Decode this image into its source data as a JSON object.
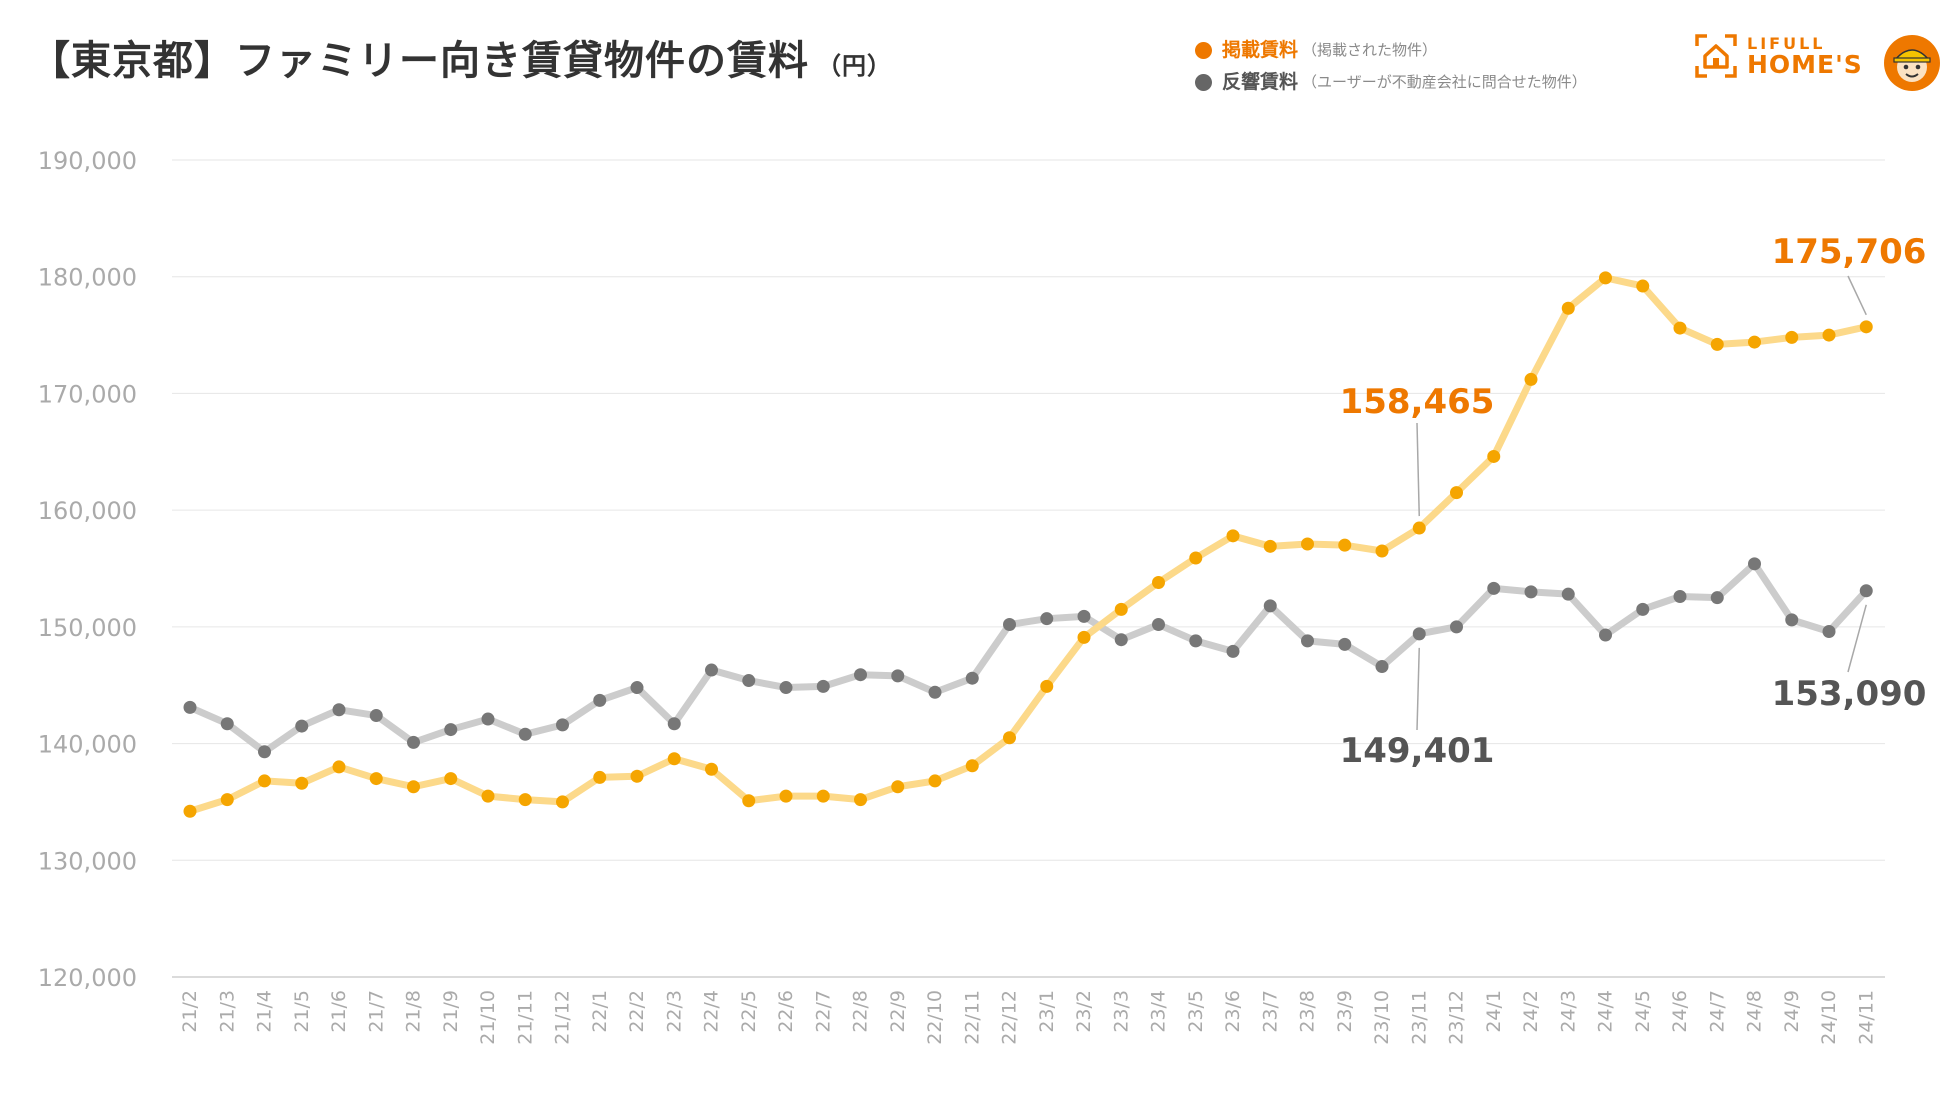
{
  "title": "【東京都】ファミリー向き賃貸物件の賃料",
  "title_unit": "（円）",
  "legend": [
    {
      "label": "掲載賃料",
      "note": "（掲載された物件）",
      "color": "#ee7800",
      "dot_color": "#ee7800"
    },
    {
      "label": "反響賃料",
      "note": "（ユーザーが不動産会社に問合せた物件）",
      "color": "#555555",
      "dot_color": "#666666"
    }
  ],
  "logo": {
    "line1": "LIFULL",
    "line2": "HOME'S",
    "icon": "house-icon",
    "color": "#ee7800"
  },
  "mascot": {
    "icon": "mascot-icon"
  },
  "chart_data": {
    "type": "line",
    "title": "【東京都】ファミリー向き賃貸物件の賃料（円）",
    "xlabel": "",
    "ylabel": "円",
    "ylim": [
      120000,
      190000
    ],
    "yticks": [
      120000,
      130000,
      140000,
      150000,
      160000,
      170000,
      180000,
      190000
    ],
    "ytick_labels": [
      "120,000",
      "130,000",
      "140,000",
      "150,000",
      "160,000",
      "170,000",
      "180,000",
      "190,000"
    ],
    "grid": true,
    "legend_position": "top-right",
    "categories": [
      "21/2",
      "21/3",
      "21/4",
      "21/5",
      "21/6",
      "21/7",
      "21/8",
      "21/9",
      "21/10",
      "21/11",
      "21/12",
      "22/1",
      "22/2",
      "22/3",
      "22/4",
      "22/5",
      "22/6",
      "22/7",
      "22/8",
      "22/9",
      "22/10",
      "22/11",
      "22/12",
      "23/1",
      "23/2",
      "23/3",
      "23/4",
      "23/5",
      "23/6",
      "23/7",
      "23/8",
      "23/9",
      "23/10",
      "23/11",
      "23/12",
      "24/1",
      "24/2",
      "24/3",
      "24/4",
      "24/5",
      "24/6",
      "24/7",
      "24/8",
      "24/9",
      "24/10",
      "24/11"
    ],
    "series": [
      {
        "name": "掲載賃料",
        "line_color": "#fcd98a",
        "point_color": "#f5a500",
        "values": [
          134200,
          135200,
          136800,
          136600,
          138000,
          137000,
          136300,
          137000,
          135500,
          135200,
          135000,
          137100,
          137200,
          138700,
          137800,
          135100,
          135500,
          135500,
          135200,
          136300,
          136800,
          138100,
          140500,
          144900,
          149100,
          151500,
          153800,
          155900,
          157800,
          156900,
          157100,
          157000,
          156500,
          158465,
          161500,
          164600,
          171200,
          177300,
          179900,
          179200,
          175600,
          174200,
          174400,
          174800,
          175000,
          175706
        ]
      },
      {
        "name": "反響賃料",
        "line_color": "#cccccc",
        "point_color": "#777777",
        "values": [
          143100,
          141700,
          139300,
          141500,
          142900,
          142400,
          140100,
          141200,
          142100,
          140800,
          141600,
          143700,
          144800,
          141700,
          146300,
          145400,
          144800,
          144900,
          145900,
          145800,
          144400,
          145600,
          150200,
          150700,
          150900,
          148900,
          150200,
          148800,
          147900,
          151800,
          148800,
          148500,
          146600,
          149401,
          150000,
          153300,
          153000,
          152800,
          149300,
          151500,
          152600,
          152500,
          155400,
          150600,
          149600,
          153090
        ]
      }
    ],
    "annotations": [
      {
        "text": "158,465",
        "series": 0,
        "category": "23/11",
        "color": "#ee7800"
      },
      {
        "text": "175,706",
        "series": 0,
        "category": "24/11",
        "color": "#ee7800"
      },
      {
        "text": "149,401",
        "series": 1,
        "category": "23/11",
        "color": "#555555"
      },
      {
        "text": "153,090",
        "series": 1,
        "category": "24/11",
        "color": "#555555"
      }
    ]
  }
}
